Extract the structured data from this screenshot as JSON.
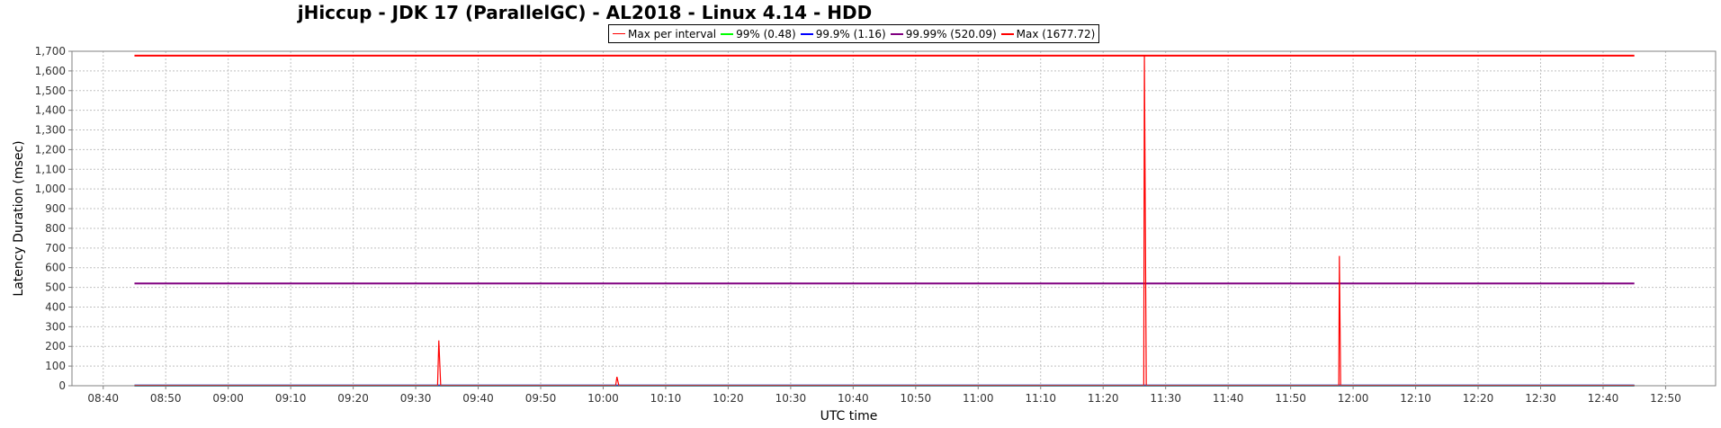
{
  "chart_data": {
    "type": "line",
    "title": "jHiccup - JDK 17 (ParallelGC) - AL2018 - Linux 4.14 - HDD",
    "xlabel": "UTC time",
    "ylabel": "Latency Duration (msec)",
    "ylim": [
      0,
      1700
    ],
    "xlim": [
      "08:35",
      "12:58"
    ],
    "y_ticks": [
      0,
      100,
      200,
      300,
      400,
      500,
      600,
      700,
      800,
      900,
      1000,
      1100,
      1200,
      1300,
      1400,
      1500,
      1600,
      1700
    ],
    "y_tick_labels": [
      "0",
      "100",
      "200",
      "300",
      "400",
      "500",
      "600",
      "700",
      "800",
      "900",
      "1,000",
      "1,100",
      "1,200",
      "1,300",
      "1,400",
      "1,500",
      "1,600",
      "1,700"
    ],
    "x_ticks": [
      "08:40",
      "08:50",
      "09:00",
      "09:10",
      "09:20",
      "09:30",
      "09:40",
      "09:50",
      "10:00",
      "10:10",
      "10:20",
      "10:30",
      "10:40",
      "10:50",
      "11:00",
      "11:10",
      "11:20",
      "11:30",
      "11:40",
      "11:50",
      "12:00",
      "12:10",
      "12:20",
      "12:30",
      "12:40",
      "12:50"
    ],
    "grid": true,
    "legend_position": "top",
    "series": [
      {
        "name": "Max per interval",
        "color": "#ff0000",
        "style": "line",
        "points": [
          [
            "08:45",
            2
          ],
          [
            "09:33.5",
            2
          ],
          [
            "09:33.7",
            230
          ],
          [
            "09:34",
            2
          ],
          [
            "10:02",
            2
          ],
          [
            "10:02.2",
            45
          ],
          [
            "10:02.5",
            2
          ],
          [
            "11:26.5",
            2
          ],
          [
            "11:26.6",
            1677.72
          ],
          [
            "11:26.9",
            2
          ],
          [
            "11:57.7",
            2
          ],
          [
            "11:57.8",
            660
          ],
          [
            "11:58",
            2
          ],
          [
            "12:45",
            2
          ]
        ]
      },
      {
        "name": "99% (0.48)",
        "color": "#00ff00",
        "style": "constant",
        "value": 0.48,
        "x_range": [
          "08:45",
          "12:45"
        ]
      },
      {
        "name": "99.9% (1.16)",
        "color": "#0000ff",
        "style": "constant",
        "value": 1.16,
        "x_range": [
          "08:45",
          "12:45"
        ]
      },
      {
        "name": "99.99% (520.09)",
        "color": "#800080",
        "style": "constant",
        "value": 520.09,
        "x_range": [
          "08:45",
          "12:45"
        ]
      },
      {
        "name": "Max (1677.72)",
        "color": "#ff0000",
        "style": "constant",
        "value": 1677.72,
        "x_range": [
          "08:45",
          "12:45"
        ]
      }
    ]
  }
}
